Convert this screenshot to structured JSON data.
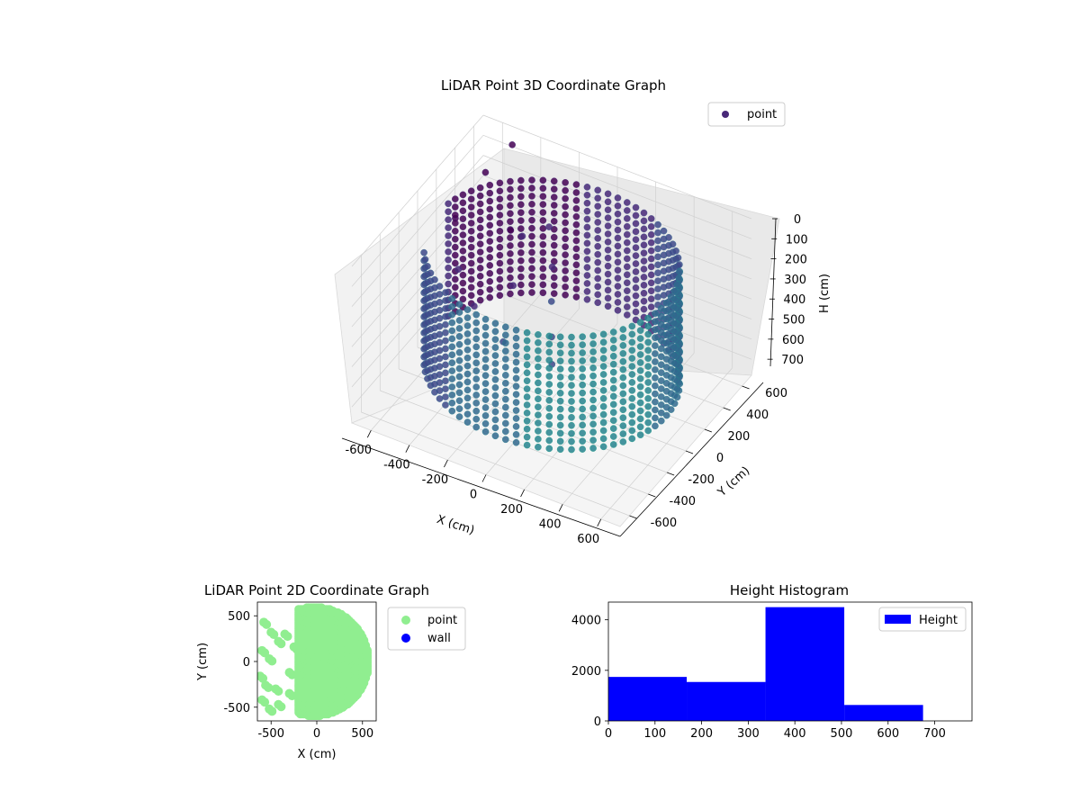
{
  "chart_data": [
    {
      "type": "scatter",
      "projection": "3d",
      "title": "LiDAR Point 3D Coordinate Graph",
      "xlabel": "X (cm)",
      "ylabel": "Y (cm)",
      "zlabel": "H (cm)",
      "xlim": [
        -700,
        700
      ],
      "ylim": [
        -700,
        700
      ],
      "zlim": [
        0,
        780
      ],
      "z_inverted": true,
      "x_ticks": [
        -600,
        -400,
        -200,
        0,
        200,
        400,
        600
      ],
      "y_ticks": [
        -600,
        -400,
        -200,
        0,
        200,
        400,
        600
      ],
      "z_ticks": [
        0,
        100,
        200,
        300,
        400,
        500,
        600,
        700
      ],
      "grid": true,
      "legend": {
        "position": "top-right",
        "entries": [
          "point"
        ]
      },
      "colormap": [
        "#440154",
        "#482878",
        "#3e4989",
        "#31688e",
        "#26828e",
        "#1f9e89",
        "#35b779",
        "#6ece58",
        "#b5de2b"
      ],
      "description_of_data": "cylindrical wall ring of radius ~600 cm centred near the origin, plus scattered inner points",
      "series": [
        {
          "name": "point",
          "color": "#482878",
          "wall_ring": {
            "radius": 600,
            "h_range": [
              80,
              650
            ],
            "theta_range_deg": [
              -150,
              170
            ]
          },
          "inner_points": [
            {
              "x": -620,
              "y": 560,
              "h": 180
            },
            {
              "x": -650,
              "y": 300,
              "h": 280
            },
            {
              "x": -500,
              "y": 600,
              "h": 20
            },
            {
              "x": -420,
              "y": 420,
              "h": 320
            },
            {
              "x": -560,
              "y": 150,
              "h": 420
            },
            {
              "x": -300,
              "y": 300,
              "h": 240
            },
            {
              "x": -250,
              "y": 100,
              "h": 360
            },
            {
              "x": -380,
              "y": -50,
              "h": 430
            },
            {
              "x": -200,
              "y": 380,
              "h": 200
            },
            {
              "x": -120,
              "y": 250,
              "h": 300
            },
            {
              "x": -60,
              "y": 120,
              "h": 380
            },
            {
              "x": 0,
              "y": 0,
              "h": 470
            },
            {
              "x": 60,
              "y": -120,
              "h": 520
            },
            {
              "x": -180,
              "y": -150,
              "h": 480
            }
          ]
        }
      ]
    },
    {
      "type": "scatter",
      "title": "LiDAR Point 2D Coordinate Graph",
      "xlabel": "X (cm)",
      "ylabel": "Y (cm)",
      "xlim": [
        -650,
        650
      ],
      "ylim": [
        -650,
        650
      ],
      "x_ticks": [
        -500,
        0,
        500
      ],
      "y_ticks": [
        -500,
        0,
        500
      ],
      "legend": {
        "position": "outside-right",
        "entries": [
          "point",
          "wall"
        ]
      },
      "series": [
        {
          "name": "point",
          "color": "#90ee90",
          "main_disc": {
            "cx": -30,
            "cy": 0,
            "r": 600,
            "x_min": -200
          },
          "clusters": [
            {
              "x": -580,
              "y": 430
            },
            {
              "x": -500,
              "y": 320
            },
            {
              "x": -420,
              "y": 220
            },
            {
              "x": -600,
              "y": 120
            },
            {
              "x": -520,
              "y": 30
            },
            {
              "x": -620,
              "y": -160
            },
            {
              "x": -560,
              "y": -260
            },
            {
              "x": -450,
              "y": -300
            },
            {
              "x": -600,
              "y": -420
            },
            {
              "x": -520,
              "y": -520
            },
            {
              "x": -420,
              "y": -470
            },
            {
              "x": -300,
              "y": -120
            },
            {
              "x": -350,
              "y": 300
            },
            {
              "x": -250,
              "y": 160
            },
            {
              "x": -300,
              "y": -350
            }
          ]
        },
        {
          "name": "wall",
          "color": "#0000ff",
          "points": []
        }
      ]
    },
    {
      "type": "bar",
      "title": "Height Histogram",
      "xlim": [
        0,
        780
      ],
      "ylim": [
        0,
        4700
      ],
      "x_ticks": [
        0,
        100,
        200,
        300,
        400,
        500,
        600,
        700
      ],
      "y_ticks": [
        0,
        2000,
        4000
      ],
      "legend": {
        "position": "top-right",
        "entries": [
          "Height"
        ]
      },
      "series": [
        {
          "name": "Height",
          "color": "#0000ff",
          "bins": [
            {
              "x0": 0,
              "x1": 168,
              "count": 1740
            },
            {
              "x0": 168,
              "x1": 337,
              "count": 1540
            },
            {
              "x0": 337,
              "x1": 506,
              "count": 4500
            },
            {
              "x0": 506,
              "x1": 675,
              "count": 630
            }
          ]
        }
      ]
    }
  ]
}
